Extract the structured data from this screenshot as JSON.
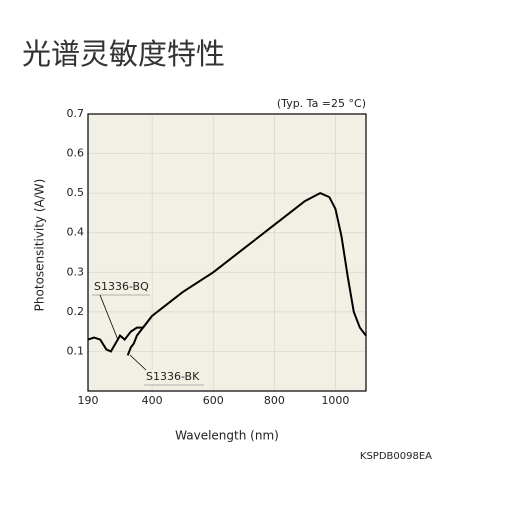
{
  "chart_data": {
    "type": "line",
    "title": "光谱灵敏度特性",
    "condition": "(Typ. Ta =25 °C)",
    "code": "KSPDB0098EA",
    "x_label": "Wavelength (nm)",
    "y_label": "Photosensitivity (A/W)",
    "xlim": [
      190,
      1100
    ],
    "xticks": [
      190,
      400,
      600,
      800,
      1000
    ],
    "ylim": [
      0,
      0.7
    ],
    "yticks": [
      0.1,
      0.2,
      0.3,
      0.4,
      0.5,
      0.6,
      0.7
    ],
    "grid": true,
    "series": [
      {
        "name": "S1336-BQ",
        "color": "#000000",
        "x": [
          190,
          210,
          230,
          250,
          265,
          280,
          295,
          310,
          330,
          350,
          370,
          400,
          500,
          600,
          700,
          800,
          900,
          950,
          980,
          1000,
          1020,
          1040,
          1060,
          1080,
          1100
        ],
        "values": [
          0.13,
          0.135,
          0.13,
          0.105,
          0.1,
          0.12,
          0.14,
          0.13,
          0.15,
          0.16,
          0.16,
          0.19,
          0.25,
          0.3,
          0.36,
          0.42,
          0.48,
          0.5,
          0.49,
          0.46,
          0.39,
          0.29,
          0.2,
          0.16,
          0.14
        ]
      },
      {
        "name": "S1336-BK",
        "color": "#000000",
        "x": [
          320,
          330,
          340,
          350,
          360,
          380,
          400
        ],
        "values": [
          0.09,
          0.11,
          0.12,
          0.14,
          0.15,
          0.17,
          0.19
        ]
      }
    ]
  }
}
